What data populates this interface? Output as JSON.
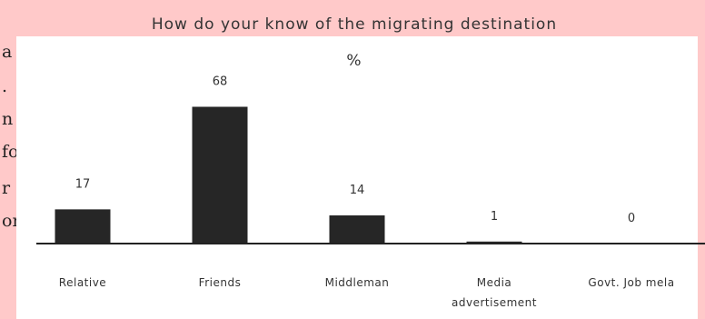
{
  "chart_data": {
    "type": "bar",
    "title": "How do your know of the migrating destination",
    "subtitle": "%",
    "categories": [
      "Relative",
      "Friends",
      "Middleman",
      "Media advertisement",
      "Govt. Job mela"
    ],
    "category_lines": [
      [
        "Relative"
      ],
      [
        "Friends"
      ],
      [
        "Middleman"
      ],
      [
        "Media",
        "advertisement"
      ],
      [
        "Govt. Job mela"
      ]
    ],
    "values": [
      17,
      68,
      14,
      1,
      0
    ],
    "data_labels": [
      "17",
      "68",
      "14",
      "1",
      "0"
    ],
    "ylim": [
      0,
      75
    ],
    "grid": false,
    "legend": "none",
    "bar_color": "#262626"
  },
  "background_colors": {
    "frame": "#ffc9c9"
  },
  "background_text_fragments": [
    "a",
    ".",
    "n",
    "fo",
    "r",
    "or"
  ]
}
